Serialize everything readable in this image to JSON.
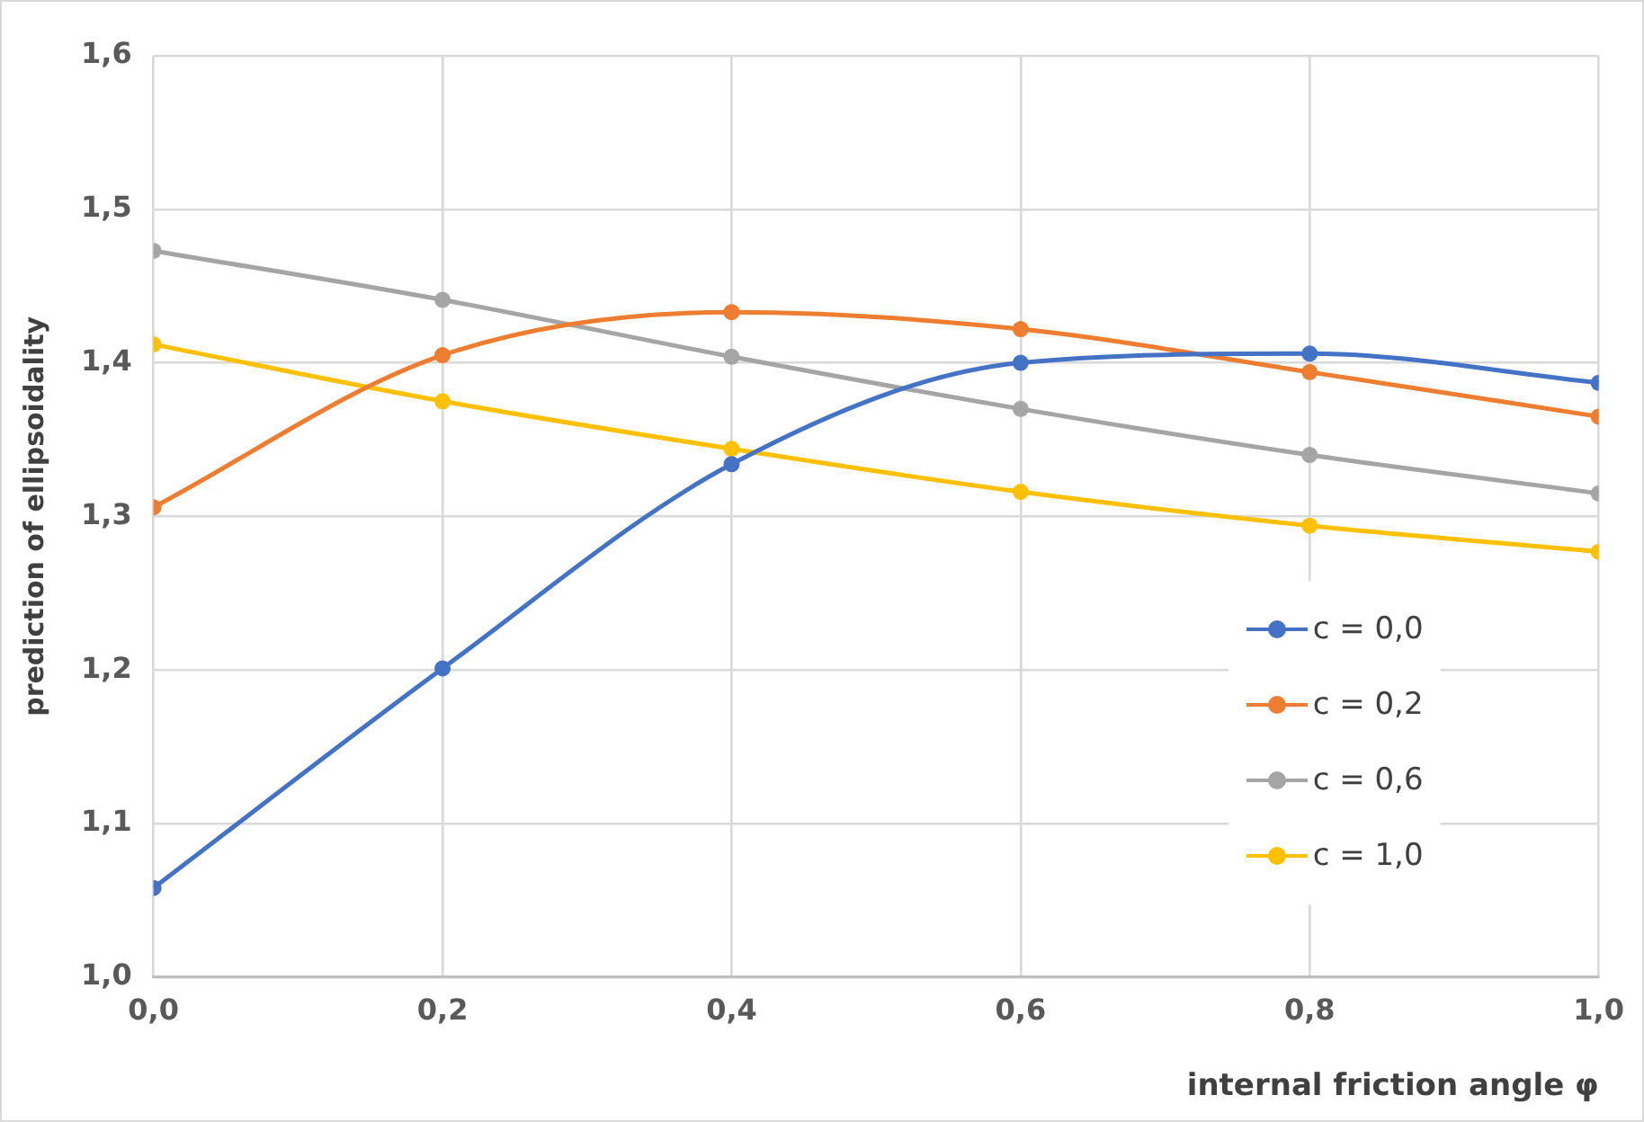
{
  "chart_data": {
    "type": "line",
    "xlabel": "internal friction angle φ",
    "ylabel": "prediction of ellipsoidality",
    "x": [
      0,
      0.2,
      0.4,
      0.6,
      0.8,
      1.0
    ],
    "series": [
      {
        "name": "c = 0,0",
        "color": "#4472c4",
        "values": [
          1.058,
          1.201,
          1.334,
          1.4,
          1.406,
          1.387
        ]
      },
      {
        "name": "c = 0,2",
        "color": "#ed7d31",
        "values": [
          1.306,
          1.405,
          1.433,
          1.422,
          1.394,
          1.365
        ]
      },
      {
        "name": "c = 0,6",
        "color": "#a5a5a5",
        "values": [
          1.473,
          1.441,
          1.404,
          1.37,
          1.34,
          1.315
        ]
      },
      {
        "name": "c = 1,0",
        "color": "#ffc000",
        "values": [
          1.412,
          1.375,
          1.344,
          1.316,
          1.294,
          1.277
        ]
      }
    ],
    "xlim": [
      0,
      1.0
    ],
    "xticks": [
      {
        "value": 0,
        "label": "0,0"
      },
      {
        "value": 0.2,
        "label": "0,2"
      },
      {
        "value": 0.4,
        "label": "0,4"
      },
      {
        "value": 0.6,
        "label": "0,6"
      },
      {
        "value": 0.8,
        "label": "0,8"
      },
      {
        "value": 1.0,
        "label": "1,0"
      }
    ],
    "ylim": [
      1.0,
      1.6
    ],
    "yticks": [
      {
        "value": 1.0,
        "label": "1,0"
      },
      {
        "value": 1.1,
        "label": "1,1"
      },
      {
        "value": 1.2,
        "label": "1,2"
      },
      {
        "value": 1.3,
        "label": "1,3"
      },
      {
        "value": 1.4,
        "label": "1,4"
      },
      {
        "value": 1.5,
        "label": "1,5"
      },
      {
        "value": 1.6,
        "label": "1,6"
      }
    ],
    "grid": true,
    "legend": "right",
    "marker": "circle",
    "line_style": "solid"
  }
}
